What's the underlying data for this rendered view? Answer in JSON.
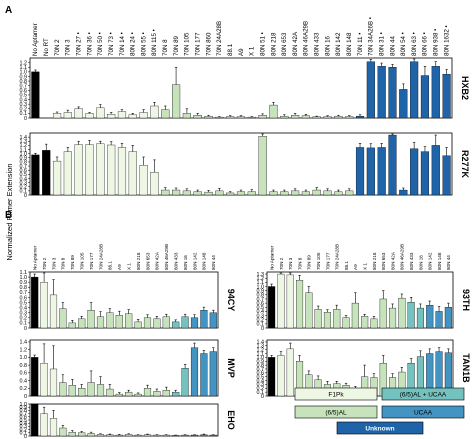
{
  "panel_labels": {
    "a": "A",
    "b": "B"
  },
  "y_axis_label": "Normalized Primer Extension",
  "colors": {
    "control": "#000000",
    "f1pk": "#eef6e4",
    "al": "#c6e3bb",
    "al_ucaa": "#74c2bf",
    "ucaa": "#4393c3",
    "unknown": "#1f63a8"
  },
  "legend": [
    {
      "label": "F1Pk",
      "key": "f1pk"
    },
    {
      "label": "(6/5)AL + UCAA",
      "key": "al_ucaa"
    },
    {
      "label": "(6/5)AL",
      "key": "al"
    },
    {
      "label": "UCAA",
      "key": "ucaa"
    },
    {
      "label": "Unknown",
      "key": "unknown"
    }
  ],
  "chart_data": [
    {
      "type": "bar",
      "name": "HXB2",
      "panel": "A",
      "categories": [
        "No Aptamer",
        "No RT",
        "70N 2",
        "70N 3",
        "70N 27 •",
        "70N 36 •",
        "70N 50 •",
        "70N 73 •",
        "70N 14 •",
        "80N 24 •",
        "80N 55 •",
        "80N 115 •",
        "70N 8",
        "70N 89",
        "70N 105",
        "70N 177",
        "70N 860",
        "70N 24A28B",
        "88.1",
        "A9",
        "X 1",
        "80N 51 •",
        "80N 218",
        "80N 653",
        "80N 42A",
        "80N 46A29B",
        "80N 433",
        "80N 16",
        "80N 142",
        "80N 148",
        "70N 11 •",
        "70N 34A26B •",
        "80N 31 •",
        "80N 44",
        "80N 54 •",
        "80N 63 •",
        "80N 66 •",
        "80N 938 •",
        "80N 1632 •"
      ],
      "groups": [
        "control",
        "control",
        "f1pk",
        "f1pk",
        "f1pk",
        "f1pk",
        "f1pk",
        "f1pk",
        "f1pk",
        "f1pk",
        "f1pk",
        "f1pk",
        "al",
        "al",
        "al",
        "al",
        "al",
        "al",
        "al",
        "al",
        "al",
        "al",
        "al",
        "al",
        "al",
        "al",
        "al",
        "al",
        "al",
        "al",
        "unknown",
        "unknown",
        "unknown",
        "unknown",
        "unknown",
        "unknown",
        "unknown",
        "unknown",
        "unknown"
      ],
      "values": [
        1.0,
        0.0,
        0.1,
        0.12,
        0.2,
        0.1,
        0.22,
        0.08,
        0.14,
        0.07,
        0.12,
        0.26,
        0.18,
        0.72,
        0.1,
        0.06,
        0.04,
        0.02,
        0.03,
        0.03,
        0.02,
        0.06,
        0.28,
        0.04,
        0.06,
        0.05,
        0.03,
        0.03,
        0.04,
        0.03,
        0.04,
        1.22,
        1.12,
        1.1,
        0.62,
        1.22,
        0.92,
        1.12,
        0.95
      ],
      "errors": [
        0.04,
        0,
        0.03,
        0.05,
        0.04,
        0.02,
        0.07,
        0.04,
        0.04,
        0.03,
        0.06,
        0.08,
        0.08,
        0.38,
        0.1,
        0.04,
        0.02,
        0.01,
        0.02,
        0.02,
        0.01,
        0.03,
        0.06,
        0.03,
        0.04,
        0.03,
        0.01,
        0.02,
        0.02,
        0.02,
        0.03,
        0.05,
        0.07,
        0.06,
        0.12,
        0.06,
        0.2,
        0.1,
        0.1
      ],
      "y_ticks": [
        "0",
        "0.1",
        "0.2",
        "0.3",
        "0.4",
        "0.5",
        "0.6",
        "0.7",
        "0.8",
        "0.9",
        "1.0",
        "1.1",
        "1.2"
      ],
      "ylim": [
        0,
        1.3
      ]
    },
    {
      "type": "bar",
      "name": "R277K",
      "panel": "A",
      "groups": [
        "control",
        "control",
        "f1pk",
        "f1pk",
        "f1pk",
        "f1pk",
        "f1pk",
        "f1pk",
        "f1pk",
        "f1pk",
        "f1pk",
        "f1pk",
        "al",
        "al",
        "al",
        "al",
        "al",
        "al",
        "al",
        "al",
        "al",
        "al",
        "al",
        "al",
        "al",
        "al",
        "al",
        "al",
        "al",
        "al",
        "unknown",
        "unknown",
        "unknown",
        "unknown",
        "unknown",
        "unknown",
        "unknown",
        "unknown",
        "unknown"
      ],
      "values": [
        0.97,
        1.08,
        0.82,
        1.05,
        1.22,
        1.22,
        1.24,
        1.21,
        1.15,
        1.05,
        0.72,
        0.55,
        0.12,
        0.12,
        0.1,
        0.08,
        0.07,
        0.1,
        0.05,
        0.08,
        0.08,
        1.42,
        0.08,
        0.08,
        0.1,
        0.08,
        0.12,
        0.1,
        0.08,
        0.1,
        1.15,
        1.14,
        1.15,
        1.45,
        0.12,
        1.12,
        1.05,
        1.2,
        0.95
      ],
      "errors": [
        0.04,
        0.15,
        0.1,
        0.1,
        0.08,
        0.1,
        0.06,
        0.08,
        0.1,
        0.15,
        0.2,
        0.3,
        0.06,
        0.05,
        0.05,
        0.04,
        0.04,
        0.06,
        0.03,
        0.04,
        0.05,
        0.08,
        0.04,
        0.04,
        0.05,
        0.04,
        0.06,
        0.05,
        0.04,
        0.05,
        0.1,
        0.1,
        0.1,
        0.15,
        0.05,
        0.15,
        0.12,
        0.25,
        0.2
      ],
      "y_ticks": [
        "0",
        "0.1",
        "0.2",
        "0.3",
        "0.4",
        "0.5",
        "0.6",
        "0.7",
        "0.8",
        "0.9",
        "1.0",
        "1.1",
        "1.2",
        "1.3",
        "1.4"
      ],
      "ylim": [
        0,
        1.5
      ]
    },
    {
      "type": "bar",
      "name": "94CY",
      "panel": "B",
      "categories": [
        "No Aptamer",
        "70N 2",
        "70N 3",
        "70N 8",
        "70N 89",
        "70N 105",
        "70N 177",
        "70N 24A28B",
        "88.1",
        "A9",
        "X 1",
        "80N 218",
        "80N 653",
        "80N 42A",
        "80N 46A29B",
        "80N 433",
        "80N 16",
        "80N 142",
        "80N 148",
        "80N 44"
      ],
      "groups": [
        "control",
        "f1pk",
        "f1pk",
        "al",
        "al",
        "al",
        "al",
        "al",
        "al",
        "al",
        "al",
        "al",
        "al",
        "al",
        "al",
        "al_ucaa",
        "al_ucaa",
        "ucaa",
        "ucaa",
        "ucaa"
      ],
      "values": [
        1.0,
        0.9,
        0.65,
        0.38,
        0.1,
        0.18,
        0.35,
        0.22,
        0.3,
        0.25,
        0.28,
        0.12,
        0.2,
        0.18,
        0.22,
        0.12,
        0.22,
        0.2,
        0.35,
        0.3
      ],
      "errors": [
        0.06,
        0.2,
        0.3,
        0.12,
        0.05,
        0.05,
        0.15,
        0.1,
        0.08,
        0.08,
        0.08,
        0.05,
        0.06,
        0.05,
        0.05,
        0.04,
        0.05,
        0.06,
        0.06,
        0.05
      ],
      "y_ticks": [
        "0",
        "0.1",
        "0.2",
        "0.3",
        "0.4",
        "0.5",
        "0.6",
        "0.7",
        "0.8",
        "0.9",
        "1.0",
        "1.1"
      ],
      "ylim": [
        0,
        1.1
      ]
    },
    {
      "type": "bar",
      "name": "MVP",
      "panel": "B",
      "groups": [
        "control",
        "f1pk",
        "f1pk",
        "al",
        "al",
        "al",
        "al",
        "al",
        "al",
        "al",
        "al",
        "al",
        "al",
        "al",
        "al",
        "al_ucaa",
        "al_ucaa",
        "ucaa",
        "ucaa",
        "ucaa"
      ],
      "values": [
        1.0,
        0.85,
        0.7,
        0.35,
        0.28,
        0.2,
        0.35,
        0.3,
        0.18,
        0.05,
        0.1,
        0.05,
        0.2,
        0.12,
        0.15,
        0.1,
        0.72,
        1.25,
        1.1,
        1.15
      ],
      "errors": [
        0.06,
        0.5,
        0.6,
        0.2,
        0.15,
        0.1,
        0.3,
        0.2,
        0.12,
        0.04,
        0.05,
        0.03,
        0.08,
        0.06,
        0.08,
        0.05,
        0.1,
        0.12,
        0.08,
        0.1
      ],
      "y_ticks": [
        "0",
        "0.2",
        "0.4",
        "0.6",
        "0.8",
        "1.0",
        "1.2",
        "1.4"
      ],
      "ylim": [
        0,
        1.45
      ]
    },
    {
      "type": "bar",
      "name": "EHO",
      "panel": "B",
      "groups": [
        "control",
        "f1pk",
        "f1pk",
        "al",
        "al",
        "al",
        "al",
        "al",
        "al",
        "al",
        "al",
        "al",
        "al",
        "al",
        "al",
        "al_ucaa",
        "al_ucaa",
        "ucaa",
        "ucaa",
        "ucaa"
      ],
      "values": [
        1.0,
        0.7,
        0.55,
        0.25,
        0.12,
        0.1,
        0.08,
        0.05,
        0.04,
        0.03,
        0.05,
        0.03,
        0.04,
        0.03,
        0.03,
        0.02,
        0.03,
        0.03,
        0.04,
        0.03
      ],
      "errors": [
        0.06,
        0.2,
        0.25,
        0.08,
        0.05,
        0.04,
        0.04,
        0.02,
        0.02,
        0.02,
        0.02,
        0.01,
        0.02,
        0.01,
        0.01,
        0.01,
        0.01,
        0.01,
        0.02,
        0.01
      ],
      "y_ticks": [
        "0",
        "0.1",
        "0.2",
        "0.3",
        "0.4",
        "0.5",
        "0.6",
        "0.7",
        "0.8",
        "0.9",
        "1.0"
      ],
      "ylim": [
        0,
        1.0
      ]
    },
    {
      "type": "bar",
      "name": "93TH",
      "panel": "B",
      "categories": [
        "No Aptamer",
        "70N 2",
        "70N 3",
        "70N 8",
        "70N 89",
        "70N 105",
        "70N 177",
        "70N 24A28B",
        "88.1",
        "A9",
        "X 1",
        "80N 218",
        "80N 653",
        "80N 42A",
        "80N 46A29B",
        "80N 433",
        "80N 16",
        "80N 142",
        "80N 148",
        "80N 44"
      ],
      "groups": [
        "control",
        "f1pk",
        "f1pk",
        "al",
        "al",
        "al",
        "al",
        "al",
        "al",
        "al",
        "al",
        "al",
        "al",
        "al",
        "al",
        "al_ucaa",
        "al_ucaa",
        "ucaa",
        "ucaa",
        "ucaa"
      ],
      "values": [
        1.0,
        1.3,
        1.28,
        1.15,
        0.85,
        0.45,
        0.38,
        0.45,
        0.25,
        0.6,
        0.28,
        0.22,
        0.7,
        0.48,
        0.72,
        0.62,
        0.48,
        0.55,
        0.4,
        0.5
      ],
      "errors": [
        0.06,
        0.04,
        0.05,
        0.12,
        0.15,
        0.08,
        0.06,
        0.1,
        0.05,
        0.25,
        0.05,
        0.06,
        0.2,
        0.1,
        0.1,
        0.12,
        0.1,
        0.1,
        0.12,
        0.1
      ],
      "y_ticks": [
        "0",
        "0.1",
        "0.2",
        "0.3",
        "0.4",
        "0.5",
        "0.6",
        "0.7",
        "0.8",
        "0.9",
        "1.0",
        "1.1",
        "1.2",
        "1.3"
      ],
      "ylim": [
        0,
        1.35
      ]
    },
    {
      "type": "bar",
      "name": "TAN1B",
      "panel": "B",
      "groups": [
        "control",
        "f1pk",
        "f1pk",
        "al",
        "al",
        "al",
        "al",
        "al",
        "al",
        "al",
        "al",
        "al",
        "al",
        "al",
        "al",
        "al_ucaa",
        "al_ucaa",
        "ucaa",
        "ucaa",
        "ucaa"
      ],
      "values": [
        1.0,
        1.05,
        1.22,
        0.9,
        0.55,
        0.42,
        0.3,
        0.32,
        0.28,
        0.2,
        0.5,
        0.48,
        0.85,
        0.48,
        0.62,
        0.85,
        1.02,
        1.1,
        1.15,
        1.12
      ],
      "errors": [
        0.05,
        0.1,
        0.15,
        0.15,
        0.1,
        0.1,
        0.08,
        0.06,
        0.05,
        0.05,
        0.3,
        0.1,
        0.2,
        0.1,
        0.12,
        0.12,
        0.15,
        0.12,
        0.1,
        0.1
      ],
      "y_ticks": [
        "0",
        "0.1",
        "0.2",
        "0.3",
        "0.4",
        "0.5",
        "0.6",
        "0.7",
        "0.8",
        "0.9",
        "1.0",
        "1.1",
        "1.2",
        "1.3",
        "1.4"
      ],
      "ylim": [
        0,
        1.45
      ]
    }
  ]
}
